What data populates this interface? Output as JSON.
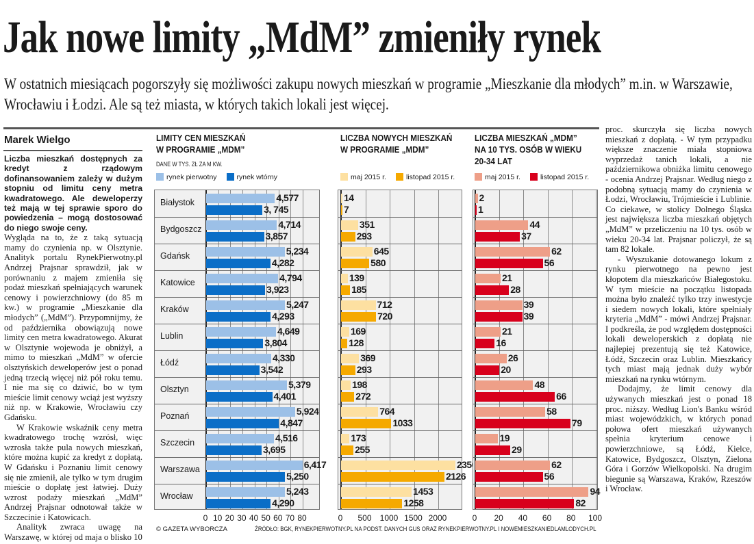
{
  "title": "Jak nowe limity „MdM” zmieniły rynek",
  "subtitle": "W ostatnich miesiącach pogorszyły się możliwości zakupu nowych mieszkań w programie „Mieszkanie dla młodych” m.in. w Warszawie, Wrocławiu i Łodzi. Ale są też miasta, w których takich lokali jest więcej.",
  "article": {
    "author": "Marek Wielgo",
    "lead": "Liczba mieszkań dostępnych za kredyt z rządowym dofinansowaniem zależy w dużym stopniu od limitu ceny metra kwadratowego. Ale deweloperzy też mają w tej sprawie sporo do powiedzenia – mogą dostosować do niego swoje ceny.",
    "p1": "Wygląda na to, że z taką sytuacją mamy do czynienia np. w Olsztynie. Analityk portalu RynekPierwotny.pl Andrzej Prajsnar sprawdził, jak w porównaniu z majem zmieniła się podaż mieszkań spełniających warunek cenowy i powierzchniowy (do 85 m kw.) w programie „Mieszkanie dla młodych” („MdM”). Przypomnijmy, że od października obowiązują nowe limity cen metra kwadratowego. Akurat w Olsztynie wojewoda je obniżył, a mimo to mieszkań „MdM” w ofercie olsztyńskich deweloperów jest o ponad jedną trzecią więcej niż pół roku temu. I nie ma się co dziwić, bo w tym mieście limit cenowy wciąż jest wyższy niż np. w Krakowie, Wrocławiu czy Gdańsku.",
    "p2": "W Krakowie wskaźnik ceny metra kwadratowego trochę wzrósł, więc wzrosła także pula nowych mieszkań, które można kupić za kredyt z dopłatą. W Gdańsku i Poznaniu limit cenowy się nie zmienił, ale tylko w tym drugim mieście o dopłatę jest łatwiej. Duży wzrost podaży mieszkań „MdM” Andrzej Prajsnar odnotował także w Szczecinie i Katowicach.",
    "p3a": "Analityk zwraca uwagę na Warszawę, w której od maja o blisko 10",
    "p3b": "proc. skurczyła się liczba nowych mieszkań z dopłatą. - W tym przypadku większe znaczenie miała stopniowa wyprzedaż tanich lokali, a nie październikowa obniżka limitu cenowego - ocenia Andrzej Prajsnar. Według niego z podobną sytuacją mamy do czynienia w Łodzi, Wrocławiu, Trójmieście i Lublinie. Co ciekawe, w stolicy Dolnego Śląska jest największa liczba mieszkań objętych „MdM” w przeliczeniu na 10 tys. osób w wieku 20-34 lat. Prajsnar policzył, że są tam 82 lokale.",
    "p4": "- Wyszukanie dotowanego lokum z rynku pierwotnego na pewno jest kłopotem dla mieszkańców Białegostoku. W tym mieście na początku listopada można było znaleźć tylko trzy inwestycje i siedem nowych lokali, które spełniały kryteria „MdM” - mówi Andrzej Prajsnar. I podkreśla, że pod względem dostępności lokali deweloperskich z dopłatą nie najlepiej prezentują się też Katowice, Łódź, Szczecin oraz Lublin. Mieszkańcy tych miast mają jednak duży wybór mieszkań na rynku wtórnym.",
    "p5": "Dodajmy, że limit cenowy dla używanych mieszkań jest o ponad 18 proc. niższy. Według Lion's Banku wśród miast wojewódzkich, w których ponad połowa ofert mieszkań używanych spełnia kryterium cenowe i powierzchniowe, są Łódź, Kielce, Katowice, Bydgoszcz, Olsztyn, Zielona Góra i Gorzów Wielkopolski. Na drugim biegunie są Warszawa, Kraków, Rzeszów i Wrocław."
  },
  "footer": {
    "copyright": "© GAZETA WYBORCZA",
    "source": "ŹRÓDŁO: BGK, RYNEKPIERWOTNY.PL NA PODST. DANYCH GUS ORAZ RYNEKPIERWOTNY.PL I NOWEMIESZKANIEDLAMLODYCH.PL"
  },
  "chart_data": [
    {
      "type": "bar",
      "title": "LIMITY CEN MIESZKAŃ\nW PROGRAMIE „MDM”",
      "subtitle": "DANE W TYS. ZŁ ZA M KW.",
      "categories": [
        "Białystok",
        "Bydgoszcz",
        "Gdańsk",
        "Katowice",
        "Kraków",
        "Lublin",
        "Łódź",
        "Olsztyn",
        "Poznań",
        "Szczecin",
        "Warszawa",
        "Wrocław"
      ],
      "series": [
        {
          "name": "rynek pierwotny",
          "color": "#9cc0e7",
          "values": [
            4.577,
            4.714,
            5.234,
            4.794,
            5.247,
            4.649,
            4.33,
            5.379,
            5.924,
            4.516,
            6.417,
            5.243
          ],
          "labels": [
            "4,577",
            "4,714",
            "5,234",
            "4,794",
            "5,247",
            "4,649",
            "4,330",
            "5,379",
            "5,924",
            "4,516",
            "6,417",
            "5,243"
          ]
        },
        {
          "name": "rynek wtórny",
          "color": "#0b6ec7",
          "values": [
            3.745,
            3.857,
            4.282,
            3.923,
            4.293,
            3.804,
            3.542,
            4.401,
            4.847,
            3.695,
            5.25,
            4.29
          ],
          "labels": [
            "3, 745",
            "3,857",
            "4,282",
            "3,923",
            "4,293",
            "3,804",
            "3,542",
            "4,401",
            "4,847",
            "3,695",
            "5,250",
            "4,290"
          ]
        }
      ],
      "xticks": [
        "0",
        "10",
        "20",
        "30",
        "40",
        "50",
        "60",
        "70",
        "80"
      ],
      "xlim": [
        0,
        80
      ]
    },
    {
      "type": "bar",
      "title": "LICZBA NOWYCH MIESZKAŃ\nW PROGRAMIE „MDM”",
      "categories": [
        "Białystok",
        "Bydgoszcz",
        "Gdańsk",
        "Katowice",
        "Kraków",
        "Lublin",
        "Łódź",
        "Olsztyn",
        "Poznań",
        "Szczecin",
        "Warszawa",
        "Wrocław"
      ],
      "series": [
        {
          "name": "maj 2015 r.",
          "color": "#fde0a1",
          "values": [
            14,
            351,
            645,
            139,
            712,
            169,
            369,
            198,
            764,
            173,
            2350,
            1453
          ]
        },
        {
          "name": "listopad 2015 r.",
          "color": "#f5a900",
          "values": [
            7,
            293,
            580,
            185,
            720,
            128,
            293,
            272,
            1033,
            255,
            2126,
            1258
          ]
        }
      ],
      "xticks": [
        "0",
        "500",
        "1000",
        "1500",
        "2000"
      ],
      "xlim": [
        0,
        2500
      ]
    },
    {
      "type": "bar",
      "title": "LICZBA MIESZKAŃ „MDM”\nNA 10 TYS. OSÓB W WIEKU\n20-34 LAT",
      "categories": [
        "Białystok",
        "Bydgoszcz",
        "Gdańsk",
        "Katowice",
        "Kraków",
        "Lublin",
        "Łódź",
        "Olsztyn",
        "Poznań",
        "Szczecin",
        "Warszawa",
        "Wrocław"
      ],
      "series": [
        {
          "name": "maj 2015 r.",
          "color": "#ee9f88",
          "values": [
            2,
            44,
            62,
            21,
            39,
            21,
            26,
            48,
            58,
            19,
            62,
            94
          ]
        },
        {
          "name": "listopad 2015 r.",
          "color": "#d8001c",
          "values": [
            1,
            37,
            56,
            28,
            39,
            16,
            20,
            66,
            79,
            29,
            56,
            82
          ]
        }
      ],
      "xticks": [
        "0",
        "20",
        "40",
        "60",
        "80",
        "100"
      ],
      "xlim": [
        0,
        100
      ]
    }
  ]
}
